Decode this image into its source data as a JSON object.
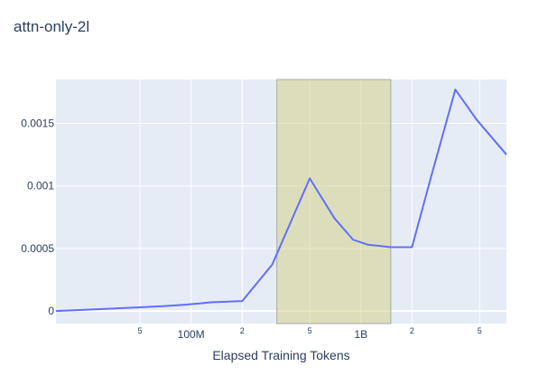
{
  "chart_data": {
    "type": "line",
    "title": "attn-only-2l",
    "xlabel": "Elapsed Training Tokens",
    "ylabel": "",
    "x_scale": "log",
    "xlim": [
      16000000,
      7200000000
    ],
    "ylim": [
      -0.0001,
      0.00185
    ],
    "x_ticks": [
      {
        "value": 50000000,
        "label": "5"
      },
      {
        "value": 100000000,
        "label": "100M"
      },
      {
        "value": 200000000,
        "label": "2"
      },
      {
        "value": 500000000,
        "label": "5"
      },
      {
        "value": 1000000000,
        "label": "1B"
      },
      {
        "value": 2000000000,
        "label": "2"
      },
      {
        "value": 5000000000,
        "label": "5"
      }
    ],
    "y_ticks": [
      {
        "value": 0,
        "label": "0"
      },
      {
        "value": 0.0005,
        "label": "0.0005"
      },
      {
        "value": 0.001,
        "label": "0.001"
      },
      {
        "value": 0.0015,
        "label": "0.0015"
      }
    ],
    "grid": true,
    "series": [
      {
        "color": "#636efa",
        "x": [
          16000000,
          50000000,
          70000000,
          90000000,
          110000000,
          130000000,
          200000000,
          300000000,
          500000000,
          700000000,
          900000000,
          1100000000,
          1300000000,
          1500000000,
          1700000000,
          2000000000,
          2600000000,
          3600000000,
          4800000000,
          7200000000
        ],
        "y": [
          0.0,
          3e-05,
          4e-05,
          5e-05,
          6e-05,
          7e-05,
          8e-05,
          0.00037,
          0.00106,
          0.00074,
          0.00057,
          0.00053,
          0.00052,
          0.00051,
          0.00051,
          0.00051,
          0.00108,
          0.00177,
          0.00153,
          0.00125
        ]
      }
    ],
    "shaded_region": {
      "x0": 320000000,
      "x1": 1500000000,
      "color": "#d6d38a"
    }
  }
}
